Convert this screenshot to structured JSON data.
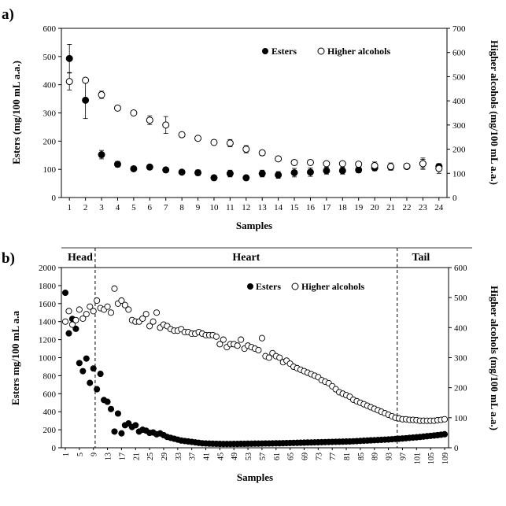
{
  "chart_data": [
    {
      "panel": "a)",
      "type": "scatter",
      "xlabel": "Samples",
      "ylabel_left": "Esters (mg/100 mL a.a.)",
      "ylabel_right": "Higher alcohols (mg/100 mL a.a.)",
      "x_ticks": [
        "1",
        "2",
        "3",
        "4",
        "5",
        "6",
        "7",
        "8",
        "9",
        "10",
        "11",
        "12",
        "13",
        "14",
        "15",
        "16",
        "17",
        "18",
        "19",
        "20",
        "21",
        "22",
        "23",
        "24"
      ],
      "ylim_left": [
        0,
        600
      ],
      "yticks_left": [
        "0",
        "100",
        "200",
        "300",
        "400",
        "500",
        "600"
      ],
      "ylim_right": [
        0,
        700
      ],
      "yticks_right": [
        "0",
        "100",
        "200",
        "300",
        "400",
        "500",
        "600",
        "700"
      ],
      "legend": [
        "Esters",
        "Higher alcohols"
      ],
      "series": [
        {
          "name": "Esters",
          "axis": "left",
          "marker": "filled-circle",
          "values": [
            493,
            345,
            152,
            118,
            102,
            108,
            98,
            90,
            88,
            70,
            85,
            70,
            85,
            80,
            88,
            90,
            95,
            95,
            98,
            105,
            108,
            110,
            120,
            110
          ],
          "errors": [
            50,
            65,
            15,
            10,
            5,
            5,
            5,
            8,
            10,
            5,
            12,
            5,
            12,
            12,
            15,
            15,
            12,
            12,
            10,
            10,
            10,
            8,
            20,
            10
          ]
        },
        {
          "name": "Higher alcohols",
          "axis": "right",
          "marker": "open-circle",
          "values": [
            480,
            485,
            425,
            370,
            350,
            320,
            300,
            260,
            245,
            228,
            225,
            200,
            185,
            160,
            145,
            145,
            140,
            140,
            138,
            132,
            128,
            130,
            140,
            120
          ],
          "errors": [
            35,
            8,
            15,
            5,
            5,
            18,
            35,
            8,
            5,
            5,
            15,
            15,
            10,
            8,
            10,
            5,
            5,
            5,
            5,
            15,
            15,
            10,
            18,
            20
          ]
        }
      ]
    },
    {
      "panel": "b)",
      "type": "scatter",
      "xlabel": "Samples",
      "ylabel_left": "Esters  mg/100 mL  a.a",
      "ylabel_right": "Higher alcohols (mg/100 mL a.a.)",
      "x_ticks": [
        "1",
        "5",
        "9",
        "13",
        "17",
        "21",
        "25",
        "29",
        "33",
        "37",
        "41",
        "45",
        "49",
        "53",
        "57",
        "61",
        "65",
        "69",
        "73",
        "77",
        "81",
        "85",
        "89",
        "93",
        "97",
        "101",
        "105",
        "109"
      ],
      "xlim": [
        1,
        109
      ],
      "ylim_left": [
        0,
        2000
      ],
      "yticks_left": [
        "0",
        "200",
        "400",
        "600",
        "800",
        "1000",
        "1200",
        "1400",
        "1600",
        "1800",
        "2000"
      ],
      "ylim_right": [
        0,
        600
      ],
      "yticks_right": [
        "0",
        "100",
        "200",
        "300",
        "400",
        "500",
        "600"
      ],
      "legend": [
        "Esters",
        "Higher alcohols"
      ],
      "sections": [
        {
          "label": "Head",
          "from": 1,
          "to": 9.5
        },
        {
          "label": "Heart",
          "from": 9.5,
          "to": 95.5
        },
        {
          "label": "Tail",
          "from": 95.5,
          "to": 109
        }
      ],
      "dividers": [
        9.5,
        95.5
      ],
      "series": [
        {
          "name": "Esters",
          "axis": "left",
          "marker": "filled-circle",
          "x": [
            1,
            2,
            3,
            4,
            5,
            6,
            7,
            8,
            9,
            10,
            11,
            12,
            13,
            14,
            15,
            16,
            17,
            18,
            19,
            20,
            21,
            22,
            23,
            24,
            25,
            26,
            27,
            28,
            29,
            30,
            31,
            32,
            33,
            34,
            35,
            36,
            37,
            38,
            39,
            40,
            41,
            42,
            43,
            44,
            45,
            46,
            47,
            48,
            49,
            50,
            51,
            52,
            53,
            54,
            55,
            56,
            57,
            58,
            59,
            60,
            61,
            62,
            63,
            64,
            65,
            66,
            67,
            68,
            69,
            70,
            71,
            72,
            73,
            74,
            75,
            76,
            77,
            78,
            79,
            80,
            81,
            82,
            83,
            84,
            85,
            86,
            87,
            88,
            89,
            90,
            91,
            92,
            93,
            94,
            95,
            96,
            97,
            98,
            99,
            100,
            101,
            102,
            103,
            104,
            105,
            106,
            107,
            108,
            109
          ],
          "values": [
            1720,
            1270,
            1430,
            1320,
            940,
            850,
            990,
            720,
            880,
            650,
            820,
            530,
            510,
            430,
            180,
            380,
            160,
            250,
            270,
            230,
            250,
            180,
            200,
            190,
            165,
            170,
            150,
            160,
            140,
            120,
            110,
            100,
            90,
            80,
            75,
            70,
            65,
            60,
            55,
            50,
            48,
            46,
            45,
            44,
            43,
            42,
            42,
            42,
            43,
            43,
            44,
            44,
            45,
            45,
            46,
            46,
            47,
            48,
            48,
            49,
            50,
            50,
            51,
            52,
            53,
            54,
            55,
            56,
            57,
            58,
            59,
            60,
            61,
            62,
            63,
            64,
            65,
            66,
            67,
            68,
            69,
            70,
            72,
            74,
            76,
            78,
            80,
            82,
            84,
            86,
            88,
            90,
            92,
            95,
            98,
            100,
            103,
            106,
            110,
            113,
            116,
            120,
            124,
            128,
            132,
            136,
            140,
            145,
            150
          ]
        },
        {
          "name": "Higher alcohols",
          "axis": "right",
          "marker": "open-circle",
          "x": [
            1,
            2,
            3,
            4,
            5,
            6,
            7,
            8,
            9,
            10,
            11,
            12,
            13,
            14,
            15,
            16,
            17,
            18,
            19,
            20,
            21,
            22,
            23,
            24,
            25,
            26,
            27,
            28,
            29,
            30,
            31,
            32,
            33,
            34,
            35,
            36,
            37,
            38,
            39,
            40,
            41,
            42,
            43,
            44,
            45,
            46,
            47,
            48,
            49,
            50,
            51,
            52,
            53,
            54,
            55,
            56,
            57,
            58,
            59,
            60,
            61,
            62,
            63,
            64,
            65,
            66,
            67,
            68,
            69,
            70,
            71,
            72,
            73,
            74,
            75,
            76,
            77,
            78,
            79,
            80,
            81,
            82,
            83,
            84,
            85,
            86,
            87,
            88,
            89,
            90,
            91,
            92,
            93,
            94,
            95,
            96,
            97,
            98,
            99,
            100,
            101,
            102,
            103,
            104,
            105,
            106,
            107,
            108,
            109
          ],
          "values": [
            420,
            455,
            410,
            425,
            460,
            430,
            445,
            470,
            455,
            490,
            465,
            460,
            470,
            450,
            530,
            480,
            490,
            475,
            460,
            425,
            420,
            420,
            430,
            445,
            405,
            420,
            450,
            400,
            410,
            405,
            395,
            390,
            390,
            395,
            385,
            385,
            380,
            380,
            385,
            380,
            375,
            375,
            375,
            370,
            345,
            360,
            335,
            345,
            345,
            340,
            360,
            330,
            340,
            335,
            330,
            325,
            365,
            305,
            300,
            315,
            305,
            300,
            285,
            290,
            280,
            270,
            265,
            260,
            255,
            250,
            245,
            240,
            235,
            225,
            220,
            215,
            205,
            195,
            185,
            180,
            175,
            170,
            160,
            155,
            150,
            145,
            140,
            135,
            130,
            125,
            120,
            115,
            110,
            105,
            100,
            98,
            95,
            95,
            93,
            93,
            92,
            90,
            90,
            90,
            90,
            90,
            92,
            93,
            95
          ]
        }
      ]
    }
  ]
}
